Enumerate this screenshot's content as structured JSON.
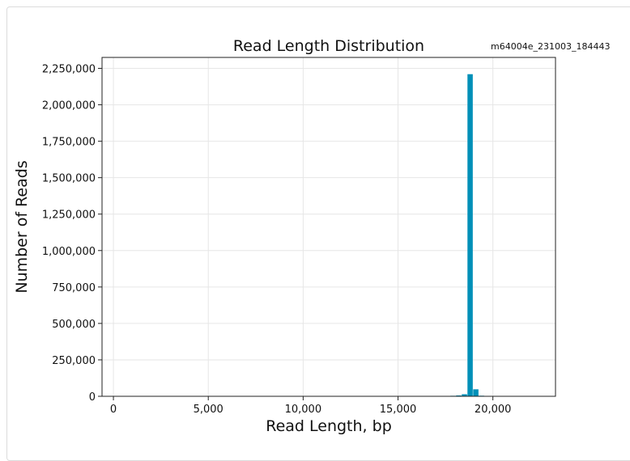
{
  "chart_data": {
    "type": "bar",
    "title": "Read Length Distribution",
    "annotation": "m64004e_231003_184443",
    "xlabel": "Read Length, bp",
    "ylabel": "Number of Reads",
    "xlim": [
      -600,
      23300
    ],
    "ylim": [
      0,
      2325000
    ],
    "bar_width": 280,
    "color": "#0090b8",
    "grid": true,
    "x_ticks": [
      0,
      5000,
      10000,
      15000,
      20000
    ],
    "x_tick_labels": [
      "0",
      "5,000",
      "10,000",
      "15,000",
      "20,000"
    ],
    "y_ticks": [
      0,
      250000,
      500000,
      750000,
      1000000,
      1250000,
      1500000,
      1750000,
      2000000,
      2250000
    ],
    "y_tick_labels": [
      "0",
      "250,000",
      "500,000",
      "750,000",
      "1,000,000",
      "1,250,000",
      "1,500,000",
      "1,750,000",
      "2,000,000",
      "2,250,000"
    ],
    "bins": [
      17300,
      17600,
      17900,
      18200,
      18500,
      18800,
      19100,
      19400,
      19700,
      20000
    ],
    "values": [
      1500,
      2500,
      3500,
      6000,
      14000,
      2210000,
      48000,
      4000,
      1500,
      800
    ]
  }
}
